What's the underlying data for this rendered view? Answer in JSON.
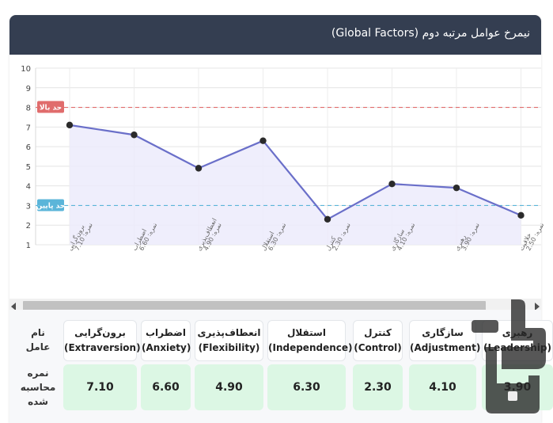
{
  "header": {
    "title": "نیمرخ عوامل مرتبه دوم (Global Factors)"
  },
  "chart_data": {
    "type": "line",
    "ylim": [
      1,
      10
    ],
    "yticks": [
      "1",
      "2",
      "3",
      "4",
      "5",
      "6",
      "7",
      "8",
      "9",
      "10"
    ],
    "grid": true,
    "categories": [
      {
        "name": "برون‌گرایی",
        "sub": "نمره: 7.10"
      },
      {
        "name": "اضطراب",
        "sub": "نمره: 6.60"
      },
      {
        "name": "انعطاف‌پذیری",
        "sub": "نمره: 4.90"
      },
      {
        "name": "استقلال",
        "sub": "نمره: 6.30"
      },
      {
        "name": "کنترل",
        "sub": "نمره: 2.30"
      },
      {
        "name": "سازگاری",
        "sub": "نمره: 4.10"
      },
      {
        "name": "رهبری",
        "sub": "نمره: 3.90"
      },
      {
        "name": "خلاقیت",
        "sub": "نمره: 2.50"
      }
    ],
    "values": [
      7.1,
      6.6,
      4.9,
      6.3,
      2.3,
      4.1,
      3.9,
      2.5
    ],
    "upper_limit": {
      "value": 8,
      "label": "حد بالا",
      "color": "#e06c6c"
    },
    "lower_limit": {
      "value": 3,
      "label": "حد پایین",
      "color": "#5bb5d9"
    },
    "line_color": "#6a6fc9",
    "fill_color": "#ecebfb"
  },
  "table": {
    "row_label_factor": [
      "نام",
      "عامل"
    ],
    "row_label_score": [
      "نمره",
      "محاسبه",
      "شده"
    ],
    "factors": [
      {
        "fa": "برون‌گرایی",
        "en": "(Extraversion)",
        "score": "7.10"
      },
      {
        "fa": "اضطراب",
        "en": "(Anxiety)",
        "score": "6.60"
      },
      {
        "fa": "انعطاف‌پذیری",
        "en": "(Flexibility)",
        "score": "4.90"
      },
      {
        "fa": "استقلال",
        "en": "(Independence)",
        "score": "6.30"
      },
      {
        "fa": "کنترل",
        "en": "(Control)",
        "score": "2.30"
      },
      {
        "fa": "سازگاری",
        "en": "(Adjustment)",
        "score": "4.10"
      },
      {
        "fa": "رهبری",
        "en": "(Leadership)",
        "score": "3.90"
      }
    ]
  }
}
